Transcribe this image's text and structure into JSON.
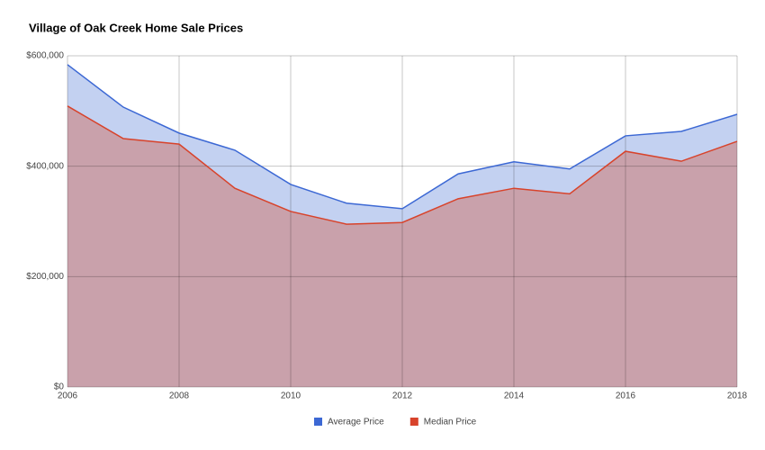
{
  "chart_data": {
    "type": "area",
    "title": "Village of Oak Creek Home Sale Prices",
    "x": [
      2006,
      2007,
      2008,
      2009,
      2010,
      2011,
      2012,
      2013,
      2014,
      2015,
      2016,
      2017,
      2018
    ],
    "series": [
      {
        "name": "Average Price",
        "color": "#3c68d4",
        "fill": "#c3d1f1",
        "values": [
          584000,
          507000,
          460000,
          429000,
          367000,
          333000,
          323000,
          386000,
          408000,
          395000,
          455000,
          463000,
          494000
        ]
      },
      {
        "name": "Median Price",
        "color": "#d8432b",
        "fill": "#c9a1ab",
        "values": [
          509000,
          450000,
          440000,
          360000,
          318000,
          295000,
          298000,
          341000,
          360000,
          350000,
          427000,
          409000,
          445000
        ]
      }
    ],
    "xlim": [
      2006,
      2018
    ],
    "xticks": [
      2006,
      2008,
      2010,
      2012,
      2014,
      2016,
      2018
    ],
    "ylim": [
      0,
      600000
    ],
    "yticks": [
      {
        "value": 0,
        "label": "$0"
      },
      {
        "value": 200000,
        "label": "$200,000"
      },
      {
        "value": 400000,
        "label": "$400,000"
      },
      {
        "value": 600000,
        "label": "$600,000"
      }
    ],
    "grid": true,
    "legend": "bottom"
  }
}
